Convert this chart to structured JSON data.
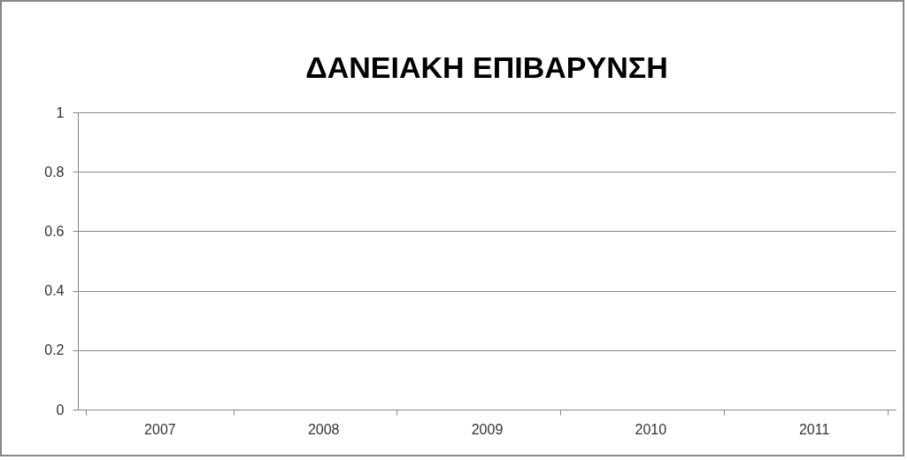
{
  "chart_data": {
    "type": "bar",
    "title": "ΔΑΝΕΙΑΚΗ ΕΠΙΒΑΡΥΝΣΗ",
    "categories": [
      "2007",
      "2008",
      "2009",
      "2010",
      "2011"
    ],
    "values": [
      null,
      null,
      null,
      null,
      null
    ],
    "ylim": [
      0,
      1
    ],
    "yticks": [
      0,
      0.2,
      0.4,
      0.6,
      0.8,
      1
    ],
    "grid": "y"
  }
}
